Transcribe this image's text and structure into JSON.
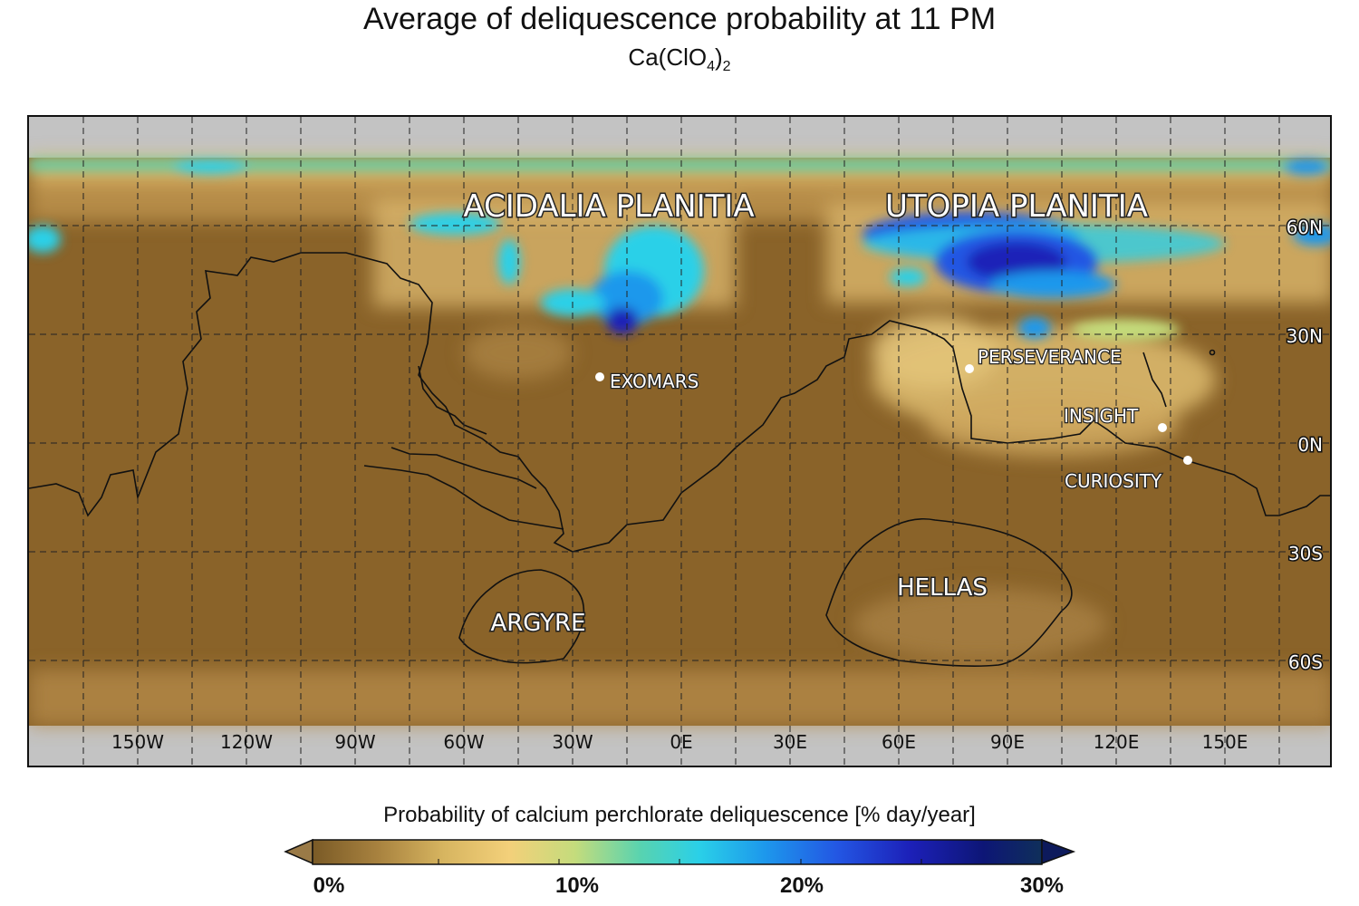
{
  "title": "Average of deliquescence probability at 11 PM",
  "subtitle": {
    "formula": "Ca(ClO",
    "sub1": "4",
    "close": ")",
    "sub2": "2"
  },
  "map": {
    "longitude_labels": [
      "150W",
      "120W",
      "90W",
      "60W",
      "30W",
      "0E",
      "30E",
      "60E",
      "90E",
      "120E",
      "150E"
    ],
    "longitude_values": [
      -150,
      -120,
      -90,
      -60,
      -30,
      0,
      30,
      60,
      90,
      120,
      150
    ],
    "latitude_labels": [
      "60N",
      "30N",
      "0N",
      "30S",
      "60S"
    ],
    "latitude_values": [
      60,
      30,
      0,
      -30,
      -60
    ],
    "gridlines": "dashed",
    "regions": [
      "ACIDALIA PLANITIA",
      "UTOPIA PLANITIA",
      "HELLAS",
      "ARGYRE"
    ],
    "landing_sites": [
      "EXOMARS",
      "PERSEVERANCE",
      "INSIGHT",
      "CURIOSITY"
    ],
    "colors": {
      "background": "#8a6329",
      "nodata": "#c3c3c3",
      "low": "#e0c070",
      "mid": "#30c8e0",
      "high": "#1f36d8",
      "max": "#0a1a8a"
    }
  },
  "colorbar": {
    "title": "Probability of calcium perchlorate deliquescence [% day/year]",
    "tick_labels": [
      "0%",
      "10%",
      "20%",
      "30%"
    ],
    "range": [
      0,
      30
    ],
    "stops": [
      "#7a5a26",
      "#a8823f",
      "#d7b560",
      "#f3d07a",
      "#c4dc7c",
      "#58d3b0",
      "#2ad0e8",
      "#1d98ec",
      "#2356e3",
      "#1c20b8",
      "#0d1676",
      "#0f2f5a"
    ]
  }
}
